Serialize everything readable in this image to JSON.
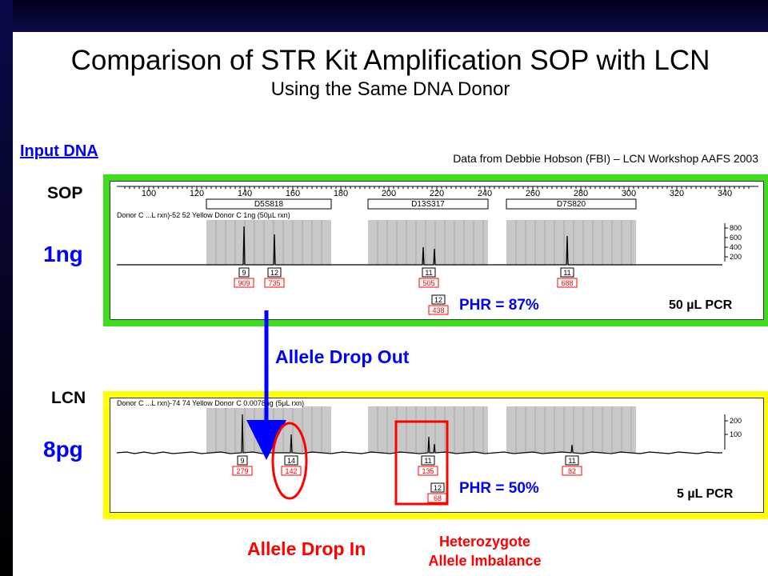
{
  "slide": {
    "title": "Comparison of STR Kit Amplification SOP with LCN",
    "subtitle": "Using the Same DNA Donor",
    "input_dna_label": "Input DNA",
    "source_note": "Data from Debbie Hobson (FBI) – LCN Workshop AAFS 2003"
  },
  "sop": {
    "label": "SOP",
    "amount": "1ng",
    "trace_label": "Donor C ...L rxn)-52 52 Yellow  Donor C 1ng (50µL rxn)",
    "phr": "PHR = 87%",
    "pcr_volume": "50 µL PCR",
    "y_ticks": [
      "800",
      "600",
      "400",
      "200"
    ],
    "x_ticks": [
      "100",
      "120",
      "140",
      "160",
      "180",
      "200",
      "220",
      "240",
      "260",
      "280",
      "300",
      "320",
      "340"
    ],
    "loci": [
      "D5S818",
      "D13S317",
      "D7S820"
    ],
    "alleles": [
      {
        "call": "9",
        "height": "909"
      },
      {
        "call": "12",
        "height": "735"
      },
      {
        "call": "11",
        "height": "505"
      },
      {
        "call": "12",
        "height": "438"
      },
      {
        "call": "11",
        "height": "688"
      }
    ]
  },
  "lcn": {
    "label": "LCN",
    "amount": "8pg",
    "trace_label": "Donor C ...L rxn)-74 74 Yellow  Donor C 0.0078ng (5µL rxn)",
    "phr": "PHR = 50%",
    "pcr_volume": "5 µL PCR",
    "y_ticks": [
      "200",
      "100"
    ],
    "alleles": [
      {
        "call": "9",
        "height": "279"
      },
      {
        "call": "14",
        "height": "142"
      },
      {
        "call": "11",
        "height": "135"
      },
      {
        "call": "12",
        "height": "68"
      },
      {
        "call": "11",
        "height": "82"
      }
    ]
  },
  "annotations": {
    "dropout": "Allele Drop Out",
    "dropin": "Allele Drop In",
    "heterozygote_line1": "Heterozygote",
    "heterozygote_line2": "Allele Imbalance"
  },
  "colors": {
    "accent_blue": "#0000ff",
    "accent_red": "#ff0000",
    "sop_frame": "#3fdc20",
    "lcn_frame": "#ffff00"
  }
}
